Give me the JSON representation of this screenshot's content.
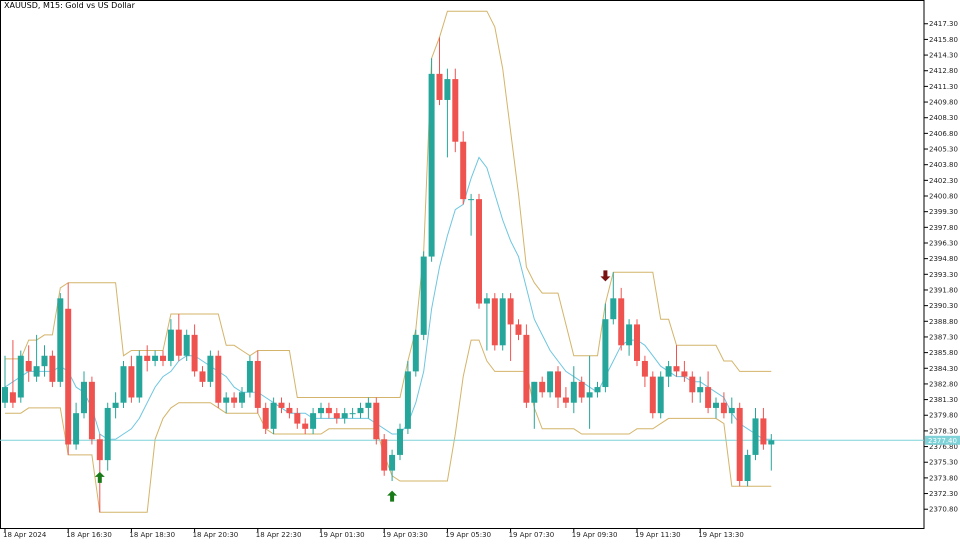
{
  "chart_data": {
    "type": "candlestick",
    "title": "XAUUSD, M15:  Gold vs US Dollar",
    "ylim": [
      2369.0,
      2419.0
    ],
    "y_ticks": [
      2417.3,
      2415.8,
      2414.3,
      2412.8,
      2411.3,
      2409.8,
      2408.3,
      2406.8,
      2405.3,
      2403.8,
      2402.3,
      2400.8,
      2399.3,
      2397.8,
      2396.3,
      2394.8,
      2393.3,
      2391.8,
      2390.3,
      2388.8,
      2387.3,
      2385.8,
      2384.3,
      2382.8,
      2381.3,
      2379.8,
      2378.3,
      2376.8,
      2375.3,
      2373.8,
      2372.3,
      2370.8
    ],
    "x_tick_labels": [
      "18 Apr 2024",
      "18 Apr 16:30",
      "18 Apr 18:30",
      "18 Apr 20:30",
      "18 Apr 22:30",
      "19 Apr 01:30",
      "19 Apr 03:30",
      "19 Apr 05:30",
      "19 Apr 07:30",
      "19 Apr 09:30",
      "19 Apr 11:30",
      "19 Apr 13:30"
    ],
    "x_tick_index": [
      0,
      8,
      16,
      24,
      32,
      40,
      48,
      56,
      64,
      72,
      80,
      88
    ],
    "current_price": 2377.4,
    "current_price_label": "2377.40",
    "up_color": "#26a69a",
    "down_color": "#ef5350",
    "upper_band_color": "#d4b46a",
    "lower_band_color": "#d4b46a",
    "mid_line_color": "#6ec6e0",
    "current_line_color": "#7fd3d8",
    "buy_arrow_color": "#1a7a1a",
    "sell_arrow_color": "#7a1010",
    "candles": [
      {
        "o": 2381.0,
        "h": 2385.5,
        "l": 2380.5,
        "c": 2382.5
      },
      {
        "o": 2382.0,
        "h": 2387.0,
        "l": 2380.5,
        "c": 2381.0
      },
      {
        "o": 2381.5,
        "h": 2386.0,
        "l": 2381.0,
        "c": 2385.5
      },
      {
        "o": 2385.0,
        "h": 2386.5,
        "l": 2383.0,
        "c": 2384.0
      },
      {
        "o": 2383.5,
        "h": 2387.5,
        "l": 2383.0,
        "c": 2384.5
      },
      {
        "o": 2384.5,
        "h": 2386.5,
        "l": 2383.5,
        "c": 2385.5
      },
      {
        "o": 2385.5,
        "h": 2386.0,
        "l": 2382.5,
        "c": 2383.0
      },
      {
        "o": 2383.0,
        "h": 2391.5,
        "l": 2382.5,
        "c": 2391.0
      },
      {
        "o": 2390.0,
        "h": 2392.5,
        "l": 2376.0,
        "c": 2377.0
      },
      {
        "o": 2377.0,
        "h": 2381.0,
        "l": 2376.5,
        "c": 2380.0
      },
      {
        "o": 2380.0,
        "h": 2384.0,
        "l": 2379.5,
        "c": 2383.0
      },
      {
        "o": 2383.0,
        "h": 2383.5,
        "l": 2377.0,
        "c": 2377.5
      },
      {
        "o": 2377.5,
        "h": 2378.0,
        "l": 2370.5,
        "c": 2375.5
      },
      {
        "o": 2375.5,
        "h": 2381.0,
        "l": 2374.5,
        "c": 2380.5
      },
      {
        "o": 2380.5,
        "h": 2382.0,
        "l": 2379.5,
        "c": 2381.0
      },
      {
        "o": 2381.0,
        "h": 2385.0,
        "l": 2380.5,
        "c": 2384.5
      },
      {
        "o": 2384.5,
        "h": 2385.5,
        "l": 2381.0,
        "c": 2381.5
      },
      {
        "o": 2381.5,
        "h": 2386.0,
        "l": 2381.0,
        "c": 2385.5
      },
      {
        "o": 2385.5,
        "h": 2386.5,
        "l": 2384.0,
        "c": 2385.0
      },
      {
        "o": 2385.0,
        "h": 2386.0,
        "l": 2384.5,
        "c": 2385.5
      },
      {
        "o": 2385.5,
        "h": 2386.0,
        "l": 2384.5,
        "c": 2385.0
      },
      {
        "o": 2385.0,
        "h": 2389.0,
        "l": 2384.5,
        "c": 2388.0
      },
      {
        "o": 2388.0,
        "h": 2389.5,
        "l": 2385.0,
        "c": 2385.5
      },
      {
        "o": 2385.5,
        "h": 2388.0,
        "l": 2385.0,
        "c": 2387.5
      },
      {
        "o": 2387.5,
        "h": 2388.5,
        "l": 2383.5,
        "c": 2384.0
      },
      {
        "o": 2384.0,
        "h": 2384.5,
        "l": 2382.5,
        "c": 2383.0
      },
      {
        "o": 2383.0,
        "h": 2386.0,
        "l": 2382.5,
        "c": 2385.5
      },
      {
        "o": 2385.5,
        "h": 2386.0,
        "l": 2380.5,
        "c": 2381.0
      },
      {
        "o": 2381.0,
        "h": 2382.0,
        "l": 2380.0,
        "c": 2381.5
      },
      {
        "o": 2381.5,
        "h": 2382.0,
        "l": 2380.5,
        "c": 2381.0
      },
      {
        "o": 2381.0,
        "h": 2382.5,
        "l": 2380.5,
        "c": 2382.0
      },
      {
        "o": 2382.0,
        "h": 2385.5,
        "l": 2381.5,
        "c": 2385.0
      },
      {
        "o": 2385.0,
        "h": 2386.0,
        "l": 2380.0,
        "c": 2380.5
      },
      {
        "o": 2380.5,
        "h": 2381.0,
        "l": 2378.0,
        "c": 2378.5
      },
      {
        "o": 2378.5,
        "h": 2381.5,
        "l": 2378.0,
        "c": 2381.0
      },
      {
        "o": 2381.0,
        "h": 2381.5,
        "l": 2380.0,
        "c": 2380.5
      },
      {
        "o": 2380.5,
        "h": 2381.0,
        "l": 2379.5,
        "c": 2380.0
      },
      {
        "o": 2380.0,
        "h": 2380.5,
        "l": 2378.5,
        "c": 2379.0
      },
      {
        "o": 2379.0,
        "h": 2379.5,
        "l": 2378.0,
        "c": 2378.5
      },
      {
        "o": 2378.5,
        "h": 2380.5,
        "l": 2378.0,
        "c": 2380.0
      },
      {
        "o": 2380.0,
        "h": 2381.0,
        "l": 2379.5,
        "c": 2380.5
      },
      {
        "o": 2380.5,
        "h": 2381.0,
        "l": 2379.5,
        "c": 2380.0
      },
      {
        "o": 2380.0,
        "h": 2380.5,
        "l": 2379.0,
        "c": 2379.5
      },
      {
        "o": 2379.5,
        "h": 2380.5,
        "l": 2379.0,
        "c": 2380.0
      },
      {
        "o": 2380.0,
        "h": 2380.5,
        "l": 2379.5,
        "c": 2380.0
      },
      {
        "o": 2380.0,
        "h": 2381.0,
        "l": 2379.5,
        "c": 2380.5
      },
      {
        "o": 2380.5,
        "h": 2381.5,
        "l": 2379.5,
        "c": 2381.0
      },
      {
        "o": 2381.0,
        "h": 2381.5,
        "l": 2377.0,
        "c": 2377.5
      },
      {
        "o": 2377.5,
        "h": 2378.0,
        "l": 2374.0,
        "c": 2374.5
      },
      {
        "o": 2374.5,
        "h": 2376.5,
        "l": 2373.5,
        "c": 2376.0
      },
      {
        "o": 2376.0,
        "h": 2379.0,
        "l": 2375.5,
        "c": 2378.5
      },
      {
        "o": 2378.5,
        "h": 2385.0,
        "l": 2378.0,
        "c": 2384.0
      },
      {
        "o": 2384.0,
        "h": 2388.0,
        "l": 2383.5,
        "c": 2387.5
      },
      {
        "o": 2387.5,
        "h": 2395.5,
        "l": 2387.0,
        "c": 2395.0
      },
      {
        "o": 2395.0,
        "h": 2414.0,
        "l": 2394.5,
        "c": 2412.5
      },
      {
        "o": 2412.5,
        "h": 2416.0,
        "l": 2409.5,
        "c": 2410.0
      },
      {
        "o": 2410.0,
        "h": 2413.0,
        "l": 2404.5,
        "c": 2412.0
      },
      {
        "o": 2412.0,
        "h": 2413.0,
        "l": 2405.0,
        "c": 2406.0
      },
      {
        "o": 2406.0,
        "h": 2407.0,
        "l": 2400.0,
        "c": 2400.5
      },
      {
        "o": 2400.5,
        "h": 2401.0,
        "l": 2397.0,
        "c": 2400.5
      },
      {
        "o": 2400.5,
        "h": 2401.0,
        "l": 2390.0,
        "c": 2390.5
      },
      {
        "o": 2390.5,
        "h": 2391.5,
        "l": 2386.0,
        "c": 2391.0
      },
      {
        "o": 2391.0,
        "h": 2391.5,
        "l": 2386.0,
        "c": 2386.5
      },
      {
        "o": 2386.5,
        "h": 2391.5,
        "l": 2386.0,
        "c": 2391.0
      },
      {
        "o": 2391.0,
        "h": 2391.5,
        "l": 2385.0,
        "c": 2388.5
      },
      {
        "o": 2388.5,
        "h": 2389.0,
        "l": 2387.0,
        "c": 2387.5
      },
      {
        "o": 2387.5,
        "h": 2388.5,
        "l": 2380.5,
        "c": 2381.0
      },
      {
        "o": 2381.0,
        "h": 2383.0,
        "l": 2378.5,
        "c": 2383.0
      },
      {
        "o": 2383.0,
        "h": 2383.5,
        "l": 2381.5,
        "c": 2382.0
      },
      {
        "o": 2382.0,
        "h": 2384.0,
        "l": 2381.5,
        "c": 2384.0
      },
      {
        "o": 2384.0,
        "h": 2384.5,
        "l": 2380.5,
        "c": 2381.5
      },
      {
        "o": 2381.5,
        "h": 2382.5,
        "l": 2380.5,
        "c": 2381.0
      },
      {
        "o": 2381.0,
        "h": 2384.5,
        "l": 2380.0,
        "c": 2383.0
      },
      {
        "o": 2383.0,
        "h": 2383.5,
        "l": 2381.0,
        "c": 2381.5
      },
      {
        "o": 2381.5,
        "h": 2385.5,
        "l": 2378.5,
        "c": 2382.0
      },
      {
        "o": 2382.0,
        "h": 2383.0,
        "l": 2381.5,
        "c": 2382.5
      },
      {
        "o": 2382.5,
        "h": 2390.5,
        "l": 2382.0,
        "c": 2389.0
      },
      {
        "o": 2389.0,
        "h": 2393.5,
        "l": 2388.5,
        "c": 2391.0
      },
      {
        "o": 2391.0,
        "h": 2392.0,
        "l": 2386.0,
        "c": 2386.5
      },
      {
        "o": 2386.5,
        "h": 2389.0,
        "l": 2385.5,
        "c": 2388.5
      },
      {
        "o": 2388.5,
        "h": 2389.0,
        "l": 2384.5,
        "c": 2385.0
      },
      {
        "o": 2385.0,
        "h": 2385.5,
        "l": 2382.5,
        "c": 2383.5
      },
      {
        "o": 2383.5,
        "h": 2384.0,
        "l": 2379.5,
        "c": 2380.0
      },
      {
        "o": 2380.0,
        "h": 2384.0,
        "l": 2379.5,
        "c": 2383.5
      },
      {
        "o": 2383.5,
        "h": 2385.0,
        "l": 2382.5,
        "c": 2384.5
      },
      {
        "o": 2384.5,
        "h": 2386.5,
        "l": 2383.5,
        "c": 2384.0
      },
      {
        "o": 2384.0,
        "h": 2385.0,
        "l": 2383.0,
        "c": 2383.5
      },
      {
        "o": 2383.5,
        "h": 2384.0,
        "l": 2381.0,
        "c": 2382.0
      },
      {
        "o": 2382.0,
        "h": 2383.5,
        "l": 2381.0,
        "c": 2382.5
      },
      {
        "o": 2382.5,
        "h": 2384.0,
        "l": 2380.0,
        "c": 2380.5
      },
      {
        "o": 2380.5,
        "h": 2381.5,
        "l": 2379.5,
        "c": 2381.0
      },
      {
        "o": 2381.0,
        "h": 2382.0,
        "l": 2379.5,
        "c": 2380.0
      },
      {
        "o": 2380.0,
        "h": 2381.5,
        "l": 2379.0,
        "c": 2380.5
      },
      {
        "o": 2380.5,
        "h": 2381.0,
        "l": 2373.0,
        "c": 2373.5
      },
      {
        "o": 2373.5,
        "h": 2376.5,
        "l": 2373.0,
        "c": 2376.0
      },
      {
        "o": 2376.0,
        "h": 2380.5,
        "l": 2375.5,
        "c": 2379.5
      },
      {
        "o": 2379.5,
        "h": 2380.5,
        "l": 2376.5,
        "c": 2377.0
      },
      {
        "o": 2377.0,
        "h": 2378.0,
        "l": 2374.5,
        "c": 2377.4
      }
    ],
    "upper_band": [
      2385.2,
      2385.2,
      2385.2,
      2387.0,
      2387.0,
      2387.5,
      2387.5,
      2392.0,
      2392.5,
      2392.5,
      2392.5,
      2392.5,
      2392.5,
      2392.5,
      2392.5,
      2385.5,
      2386.0,
      2386.0,
      2386.0,
      2386.0,
      2386.0,
      2389.5,
      2389.5,
      2389.5,
      2389.5,
      2389.5,
      2389.5,
      2389.5,
      2386.5,
      2386.5,
      2386.0,
      2385.5,
      2386.0,
      2386.0,
      2386.0,
      2386.0,
      2386.0,
      2381.5,
      2381.5,
      2381.5,
      2381.5,
      2381.5,
      2381.5,
      2381.5,
      2381.5,
      2381.5,
      2381.5,
      2381.5,
      2381.5,
      2381.5,
      2381.5,
      2385.0,
      2388.0,
      2395.5,
      2414.0,
      2416.0,
      2418.5,
      2418.5,
      2418.5,
      2418.5,
      2418.5,
      2418.5,
      2417.0,
      2413.0,
      2407.0,
      2401.0,
      2394.0,
      2392.5,
      2391.5,
      2391.5,
      2391.5,
      2388.5,
      2385.5,
      2385.5,
      2385.5,
      2385.5,
      2390.5,
      2393.5,
      2393.5,
      2393.5,
      2393.5,
      2393.5,
      2393.5,
      2389.0,
      2389.0,
      2386.5,
      2386.5,
      2386.5,
      2386.5,
      2386.5,
      2386.5,
      2385.0,
      2385.0,
      2384.0,
      2384.0,
      2384.0,
      2384.0,
      2384.0
    ],
    "lower_band": [
      2380.0,
      2380.0,
      2380.0,
      2380.5,
      2380.5,
      2380.5,
      2380.5,
      2380.5,
      2376.0,
      2376.0,
      2376.0,
      2376.0,
      2370.5,
      2370.5,
      2370.5,
      2370.5,
      2370.5,
      2370.5,
      2370.5,
      2377.5,
      2379.5,
      2380.5,
      2381.0,
      2381.0,
      2381.0,
      2381.0,
      2381.0,
      2380.5,
      2380.0,
      2380.0,
      2380.0,
      2380.0,
      2380.0,
      2378.5,
      2378.0,
      2378.0,
      2378.0,
      2378.0,
      2378.0,
      2378.0,
      2378.0,
      2378.5,
      2378.5,
      2378.5,
      2378.5,
      2378.5,
      2378.5,
      2378.5,
      2376.0,
      2374.0,
      2373.5,
      2373.5,
      2373.5,
      2373.5,
      2373.5,
      2373.5,
      2373.5,
      2378.0,
      2383.5,
      2387.0,
      2387.0,
      2385.0,
      2384.0,
      2384.0,
      2384.0,
      2384.0,
      2384.0,
      2380.5,
      2378.5,
      2378.5,
      2378.5,
      2378.5,
      2378.5,
      2378.0,
      2378.0,
      2378.0,
      2378.0,
      2378.0,
      2378.0,
      2378.0,
      2378.5,
      2378.5,
      2378.5,
      2379.0,
      2379.5,
      2379.5,
      2379.5,
      2379.5,
      2379.5,
      2379.5,
      2379.5,
      2379.0,
      2373.0,
      2373.0,
      2373.0,
      2373.0,
      2373.0,
      2373.0
    ],
    "mid_line": [
      2382.5,
      2383.0,
      2383.5,
      2384.0,
      2384.0,
      2384.0,
      2384.0,
      2384.5,
      2384.0,
      2382.5,
      2382.0,
      2380.5,
      2378.0,
      2377.5,
      2377.5,
      2378.0,
      2378.5,
      2379.5,
      2381.0,
      2382.5,
      2383.5,
      2384.0,
      2385.0,
      2385.5,
      2385.5,
      2385.0,
      2384.5,
      2384.0,
      2383.5,
      2382.5,
      2382.0,
      2382.0,
      2382.0,
      2381.5,
      2381.0,
      2380.5,
      2380.0,
      2380.0,
      2380.0,
      2379.5,
      2379.5,
      2379.5,
      2379.5,
      2379.5,
      2379.5,
      2379.5,
      2379.5,
      2379.0,
      2378.5,
      2378.0,
      2378.0,
      2379.0,
      2381.0,
      2384.0,
      2390.0,
      2394.0,
      2397.0,
      2399.5,
      2400.0,
      2402.5,
      2404.5,
      2403.5,
      2401.0,
      2398.5,
      2396.5,
      2395.0,
      2392.0,
      2389.0,
      2387.5,
      2386.0,
      2385.0,
      2384.0,
      2383.5,
      2383.0,
      2382.5,
      2382.0,
      2383.5,
      2385.0,
      2386.5,
      2387.0,
      2387.0,
      2386.5,
      2385.5,
      2384.5,
      2384.0,
      2383.5,
      2383.5,
      2383.0,
      2383.0,
      2382.5,
      2382.0,
      2381.5,
      2380.0,
      2379.0,
      2378.5,
      2378.0,
      2377.5,
      2377.5
    ],
    "signals": [
      {
        "index": 12,
        "type": "buy",
        "price": 2373.8
      },
      {
        "index": 49,
        "type": "buy",
        "price": 2372.0
      },
      {
        "index": 76,
        "type": "sell",
        "price": 2393.2
      }
    ]
  }
}
